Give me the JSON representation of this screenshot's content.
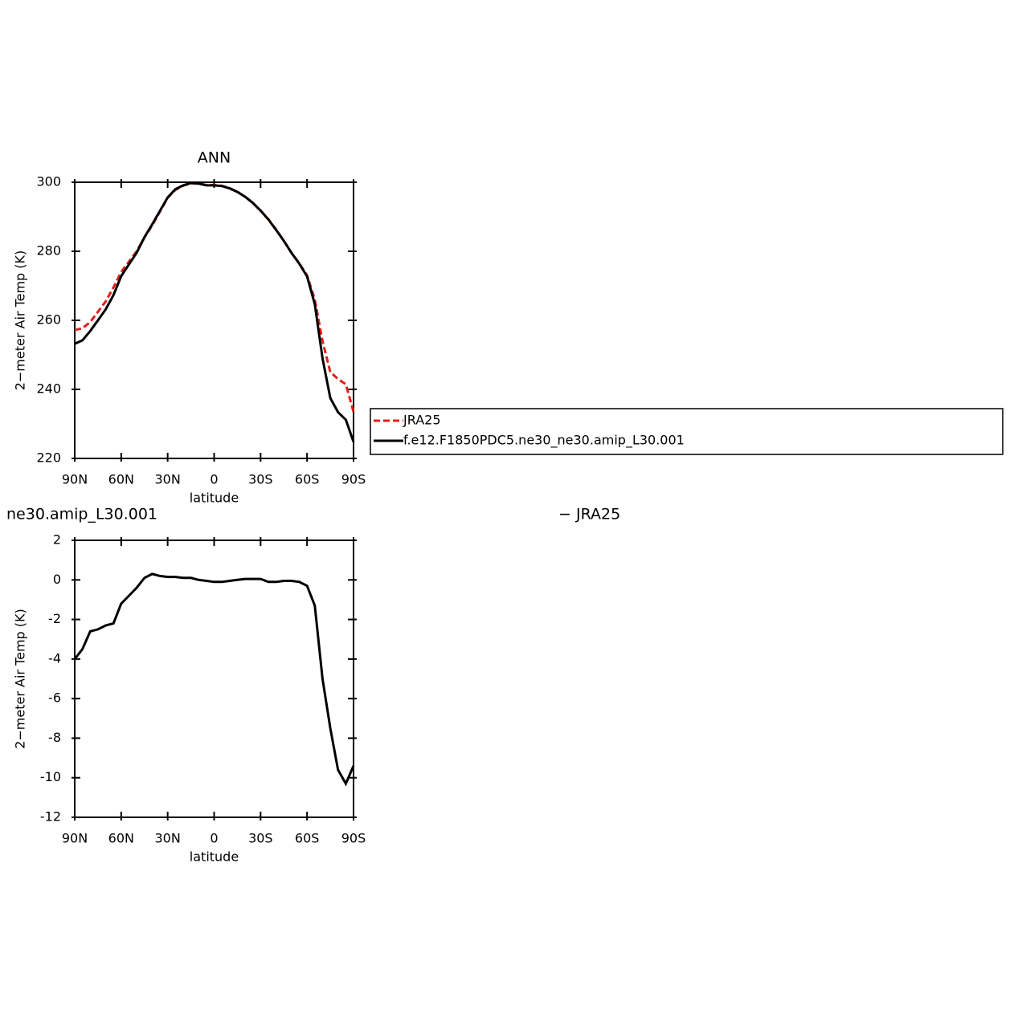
{
  "chart_data": [
    {
      "type": "line",
      "title": "ANN",
      "xlabel": "latitude",
      "ylabel": "2−meter Air Temp (K)",
      "x": [
        90,
        85,
        80,
        75,
        70,
        65,
        60,
        55,
        50,
        45,
        40,
        35,
        30,
        25,
        20,
        15,
        10,
        5,
        0,
        -5,
        -10,
        -15,
        -20,
        -25,
        -30,
        -35,
        -40,
        -45,
        -50,
        -55,
        -60,
        -65,
        -70,
        -75,
        -80,
        -85,
        -90
      ],
      "series": [
        {
          "name": "JRA25",
          "color": "#e0201b",
          "linestyle": "dashed",
          "values": [
            257.2,
            257.7,
            259.5,
            262.5,
            265.5,
            269.5,
            274,
            277,
            280,
            284,
            287.5,
            291.5,
            295.5,
            297.8,
            299,
            299.7,
            299.6,
            299.2,
            299.2,
            299,
            298.3,
            297.2,
            295.8,
            294,
            291.8,
            289.3,
            286.3,
            283,
            279.5,
            276.5,
            273,
            266,
            254,
            245,
            243,
            241.5,
            233.5
          ]
        },
        {
          "name": "f.e12.F1850PDC5.ne30_ne30.amip_L30.001",
          "color": "#000000",
          "linestyle": "solid",
          "values": [
            253.2,
            254.2,
            256.9,
            260,
            263.2,
            267.3,
            272.8,
            276.2,
            279.6,
            284.1,
            287.8,
            291.7,
            295.6,
            298,
            299.1,
            299.8,
            299.6,
            299.1,
            299.1,
            298.9,
            298.2,
            297.2,
            295.8,
            294,
            291.8,
            289.2,
            286.2,
            283,
            279.5,
            276.4,
            272.7,
            264.7,
            249,
            237.5,
            233.4,
            231.2,
            224.8
          ]
        }
      ],
      "xlim": [
        90,
        -90
      ],
      "xticks": [
        {
          "value": 90,
          "label": "90N"
        },
        {
          "value": 60,
          "label": "60N"
        },
        {
          "value": 30,
          "label": "30N"
        },
        0,
        {
          "value": -30,
          "label": "30S"
        },
        {
          "value": -60,
          "label": "60S"
        },
        {
          "value": -90,
          "label": "90S"
        }
      ],
      "ylim": [
        220,
        300
      ],
      "yticks": [
        220,
        240,
        260,
        280,
        300
      ],
      "legend": "right"
    },
    {
      "type": "line",
      "title_left": "ne30.amip_L30.001",
      "title_right": "− JRA25",
      "xlabel": "latitude",
      "ylabel": "2−meter Air Temp (K)",
      "x": [
        90,
        85,
        80,
        75,
        70,
        65,
        60,
        55,
        50,
        45,
        40,
        35,
        30,
        25,
        20,
        15,
        10,
        5,
        0,
        -5,
        -10,
        -15,
        -20,
        -25,
        -30,
        -35,
        -40,
        -45,
        -50,
        -55,
        -60,
        -65,
        -70,
        -75,
        -80,
        -85,
        -90
      ],
      "color": "#000000",
      "values": [
        -4.0,
        -3.5,
        -2.6,
        -2.5,
        -2.3,
        -2.2,
        -1.2,
        -0.8,
        -0.4,
        0.1,
        0.3,
        0.2,
        0.15,
        0.15,
        0.1,
        0.1,
        0.0,
        -0.05,
        -0.1,
        -0.1,
        -0.05,
        0.0,
        0.05,
        0.05,
        0.05,
        -0.1,
        -0.1,
        -0.05,
        -0.05,
        -0.1,
        -0.3,
        -1.3,
        -5,
        -7.5,
        -9.6,
        -10.3,
        -9.4
      ],
      "xlim": [
        90,
        -90
      ],
      "xticks": [
        {
          "value": 90,
          "label": "90N"
        },
        {
          "value": 60,
          "label": "60N"
        },
        {
          "value": 30,
          "label": "30N"
        },
        0,
        {
          "value": -30,
          "label": "30S"
        },
        {
          "value": -60,
          "label": "60S"
        },
        {
          "value": -90,
          "label": "90S"
        }
      ],
      "ylim": [
        -12,
        2
      ],
      "yticks": [
        -12,
        -10,
        -8,
        -6,
        -4,
        -2,
        0,
        2
      ]
    }
  ]
}
